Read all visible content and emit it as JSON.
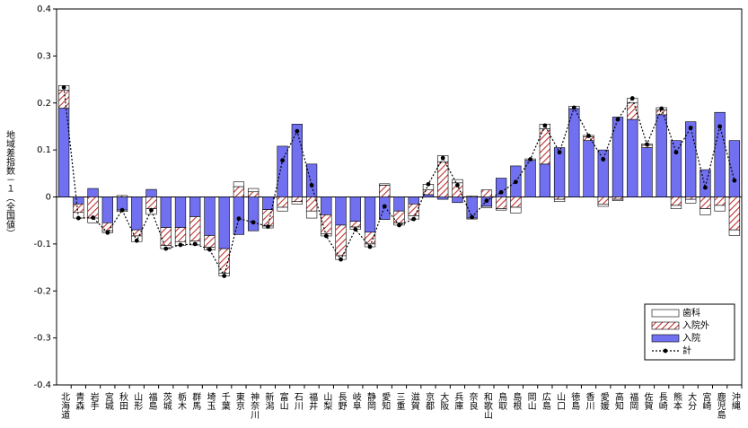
{
  "chart_data": {
    "type": "bar",
    "stacked": true,
    "y_label": "地域差指数－１（全国値）",
    "categories": [
      "北海道",
      "青森",
      "岩手",
      "宮城",
      "秋田",
      "山形",
      "福島",
      "茨城",
      "栃木",
      "群馬",
      "埼玉",
      "千葉",
      "東京",
      "神奈川",
      "新潟",
      "富山",
      "石川",
      "福井",
      "山梨",
      "長野",
      "岐阜",
      "静岡",
      "愛知",
      "三重",
      "滋賀",
      "京都",
      "大阪",
      "兵庫",
      "奈良",
      "和歌山",
      "鳥取",
      "島根",
      "岡山",
      "広島",
      "山口",
      "徳島",
      "香川",
      "愛媛",
      "高知",
      "福岡",
      "佐賀",
      "長崎",
      "熊本",
      "大分",
      "宮崎",
      "鹿児島",
      "沖縄"
    ],
    "series": [
      {
        "name": "入院",
        "color": "#7070f0",
        "values": [
          0.189,
          -0.015,
          0.018,
          -0.055,
          -0.028,
          -0.07,
          0.016,
          -0.065,
          -0.065,
          -0.042,
          -0.082,
          -0.11,
          -0.08,
          -0.072,
          -0.027,
          0.108,
          0.155,
          0.07,
          -0.038,
          -0.06,
          -0.052,
          -0.075,
          -0.048,
          -0.03,
          -0.015,
          0.005,
          -0.005,
          -0.012,
          -0.045,
          -0.02,
          0.04,
          0.066,
          0.078,
          0.07,
          0.105,
          0.188,
          0.12,
          0.1,
          0.17,
          0.165,
          0.105,
          0.175,
          0.12,
          0.16,
          0.058,
          0.18,
          0.12
        ]
      },
      {
        "name": "入院外",
        "color": "#c03030",
        "hatch": true,
        "values": [
          0.038,
          -0.018,
          -0.045,
          -0.017,
          0.003,
          -0.013,
          -0.025,
          -0.038,
          -0.03,
          -0.052,
          -0.025,
          -0.052,
          0.022,
          0.011,
          -0.035,
          -0.022,
          -0.01,
          -0.03,
          -0.04,
          -0.065,
          -0.012,
          -0.025,
          0.025,
          -0.025,
          -0.025,
          0.01,
          0.075,
          0.03,
          0.002,
          0.015,
          -0.025,
          -0.022,
          0,
          0.075,
          -0.005,
          0,
          0.008,
          -0.015,
          -0.005,
          0.035,
          0.005,
          0.01,
          -0.018,
          -0.005,
          -0.025,
          -0.018,
          -0.07
        ]
      },
      {
        "name": "歯科",
        "color": "#ffffff",
        "values": [
          0.01,
          -0.012,
          -0.01,
          -0.004,
          -0.003,
          -0.012,
          -0.012,
          -0.007,
          -0.008,
          -0.008,
          -0.006,
          -0.006,
          0.01,
          0.007,
          -0.004,
          -0.008,
          -0.005,
          -0.015,
          -0.005,
          -0.008,
          -0.005,
          -0.006,
          0.003,
          -0.005,
          -0.007,
          0.012,
          0.013,
          0.007,
          -0.002,
          -0.003,
          -0.003,
          -0.012,
          0.003,
          0.01,
          -0.005,
          0.005,
          0.003,
          -0.005,
          -0.003,
          0.01,
          0.003,
          0.005,
          -0.007,
          -0.008,
          -0.013,
          -0.012,
          -0.012
        ]
      },
      {
        "name": "計",
        "type": "line",
        "color": "#000000",
        "values": [
          0.233,
          -0.045,
          -0.044,
          -0.076,
          -0.028,
          -0.093,
          -0.028,
          -0.11,
          -0.102,
          -0.1,
          -0.112,
          -0.168,
          -0.046,
          -0.054,
          -0.063,
          0.078,
          0.14,
          0.025,
          -0.083,
          -0.133,
          -0.069,
          -0.106,
          -0.02,
          -0.06,
          -0.047,
          0.027,
          0.083,
          0.025,
          -0.043,
          -0.008,
          0.01,
          0.032,
          0.08,
          0.152,
          0.095,
          0.19,
          0.13,
          0.08,
          0.165,
          0.21,
          0.112,
          0.188,
          0.095,
          0.147,
          0.02,
          0.15,
          0.035
        ]
      }
    ],
    "ylim": [
      -0.4,
      0.4
    ],
    "yticks": [
      -0.4,
      -0.3,
      -0.2,
      -0.1,
      0,
      0.1,
      0.2,
      0.3,
      0.4
    ],
    "legend": "lower right"
  }
}
